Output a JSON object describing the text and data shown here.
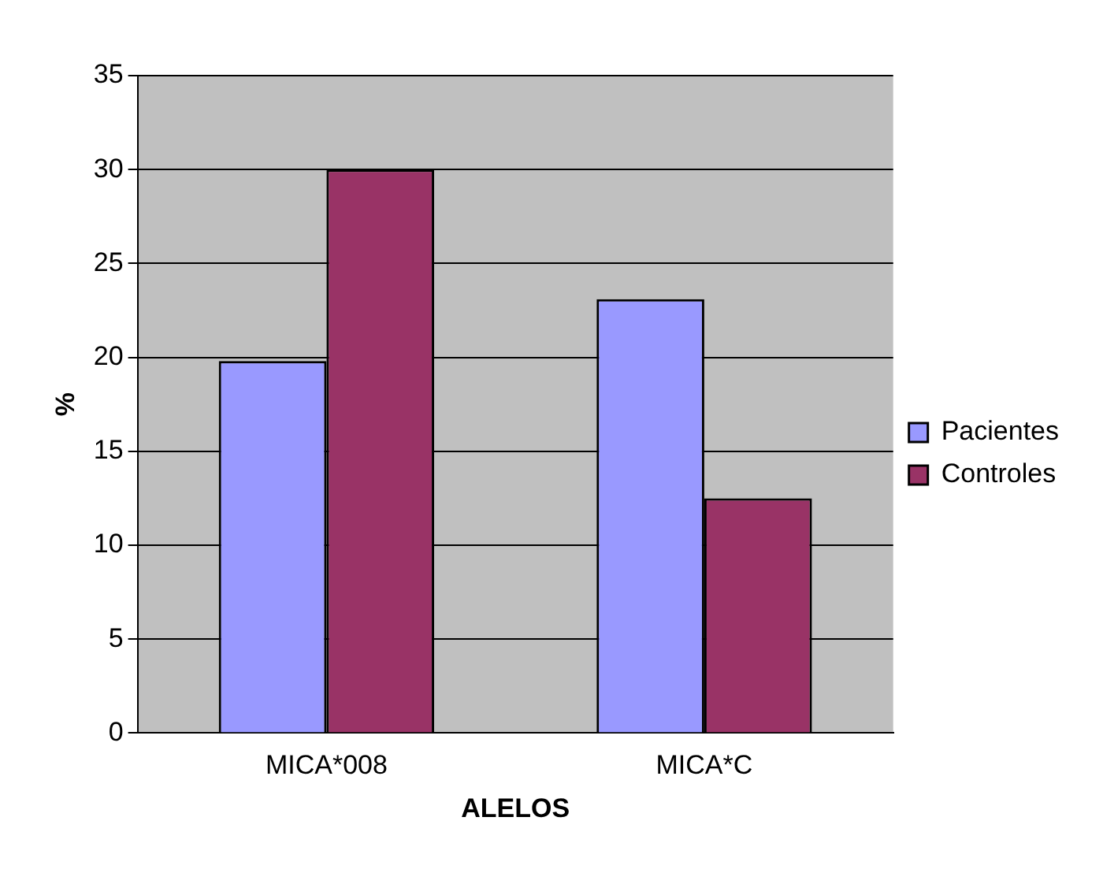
{
  "chart_data": {
    "type": "bar",
    "xlabel": "ALELOS",
    "ylabel": "%",
    "categories": [
      "MICA*008",
      "MICA*C"
    ],
    "series": [
      {
        "name": "Pacientes",
        "color": "#9999ff",
        "values": [
          19.8,
          23.1
        ]
      },
      {
        "name": "Controles",
        "color": "#993366",
        "values": [
          30,
          12.5
        ]
      }
    ],
    "ylim": [
      0,
      35
    ],
    "yticks": [
      0,
      5,
      10,
      15,
      20,
      25,
      30,
      35
    ],
    "grid": "y",
    "legend": "right"
  }
}
